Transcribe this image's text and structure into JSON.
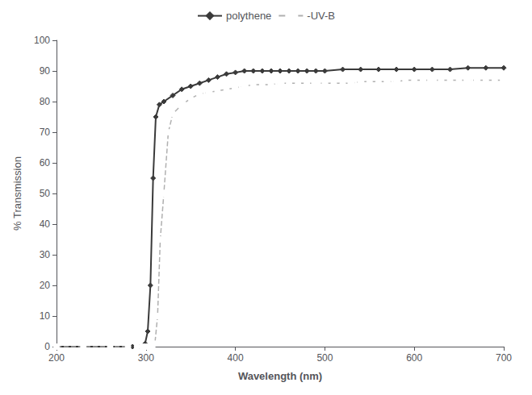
{
  "chart_data": {
    "type": "line",
    "xlabel": "Wavelength (nm)",
    "ylabel": "% Transmission",
    "xlim": [
      200,
      700
    ],
    "xticks": [
      200,
      300,
      400,
      500,
      600,
      700
    ],
    "ylim": [
      0,
      100
    ],
    "yticks": [
      0,
      10,
      20,
      30,
      40,
      50,
      60,
      70,
      80,
      90,
      100
    ],
    "grid": false,
    "legend": "upper center",
    "series": [
      {
        "name": "polythene",
        "color": "#3a3a3a",
        "marker": "diamond",
        "line_style": "solid",
        "x": [
          200,
          230,
          260,
          280,
          285,
          290,
          293,
          296,
          299,
          302,
          305,
          308,
          311,
          315,
          320,
          330,
          340,
          350,
          360,
          370,
          380,
          390,
          400,
          410,
          420,
          430,
          440,
          450,
          460,
          470,
          480,
          490,
          500,
          520,
          540,
          560,
          580,
          600,
          620,
          640,
          660,
          680,
          700
        ],
        "values": [
          0,
          0,
          0,
          0,
          0,
          0,
          0,
          0,
          1,
          5,
          20,
          55,
          75,
          79,
          80,
          82,
          84,
          85,
          86,
          87,
          88,
          89,
          89.5,
          90,
          90,
          90,
          90,
          90,
          90,
          90,
          90,
          90,
          90,
          90.5,
          90.5,
          90.5,
          90.5,
          90.5,
          90.5,
          90.5,
          91,
          91,
          91
        ]
      },
      {
        "name": "-UV-B",
        "color": "#b0b0b0",
        "marker": "open circle",
        "line_style": "dashed",
        "x": [
          200,
          230,
          260,
          280,
          290,
          295,
          298,
          301,
          304,
          307,
          310,
          313,
          316,
          320,
          325,
          330,
          340,
          350,
          360,
          370,
          380,
          390,
          400,
          410,
          420,
          430,
          440,
          450,
          460,
          470,
          480,
          490,
          500,
          510,
          520,
          530,
          540,
          550,
          560,
          570,
          580,
          590,
          600,
          610,
          620,
          630,
          640,
          650,
          660,
          670,
          680,
          690,
          700
        ],
        "values": [
          0,
          0,
          0,
          0,
          0,
          0,
          0,
          0,
          0,
          0,
          1,
          10,
          35,
          50,
          70,
          76,
          79,
          81,
          82.5,
          83,
          83.5,
          84,
          84.5,
          85,
          85.5,
          85.5,
          85.5,
          86,
          86,
          86,
          86,
          86,
          86,
          86,
          86,
          86,
          86.5,
          86.5,
          86.5,
          86.5,
          86.5,
          87,
          87,
          87,
          87,
          87,
          87,
          87,
          87,
          87,
          87,
          87,
          87
        ]
      }
    ]
  }
}
